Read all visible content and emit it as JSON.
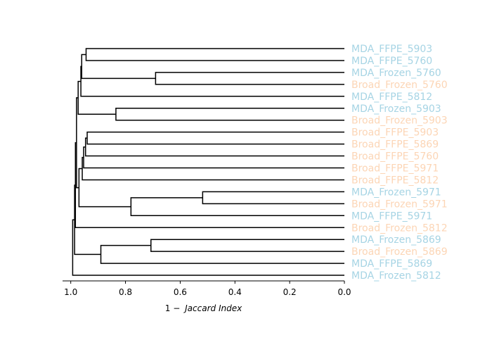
{
  "chart_data": {
    "type": "dendrogram",
    "orientation": "right-to-left",
    "xlabel": "1 − Jaccard Index",
    "xlabel_prefix": "1 −",
    "xlabel_italic": "Jaccard Index",
    "xlim": [
      1.03,
      0.0
    ],
    "xticks": [
      1.0,
      0.8,
      0.6,
      0.4,
      0.2,
      0.0
    ],
    "xtick_labels": [
      "1.0",
      "0.8",
      "0.6",
      "0.4",
      "0.2",
      "0.0"
    ],
    "group_colors": {
      "MDA": "#a6d4e4",
      "Broad": "#fcd5b5"
    },
    "line_color": "#000000",
    "leaves": [
      {
        "label": "MDA_FFPE_5903",
        "group": "MDA"
      },
      {
        "label": "MDA_FFPE_5760",
        "group": "MDA"
      },
      {
        "label": "MDA_Frozen_5760",
        "group": "MDA"
      },
      {
        "label": "Broad_Frozen_5760",
        "group": "Broad"
      },
      {
        "label": "MDA_FFPE_5812",
        "group": "MDA"
      },
      {
        "label": "MDA_Frozen_5903",
        "group": "MDA"
      },
      {
        "label": "Broad_Frozen_5903",
        "group": "Broad"
      },
      {
        "label": "Broad_FFPE_5903",
        "group": "Broad"
      },
      {
        "label": "Broad_FFPE_5869",
        "group": "Broad"
      },
      {
        "label": "Broad_FFPE_5760",
        "group": "Broad"
      },
      {
        "label": "Broad_FFPE_5971",
        "group": "Broad"
      },
      {
        "label": "Broad_FFPE_5812",
        "group": "Broad"
      },
      {
        "label": "MDA_Frozen_5971",
        "group": "MDA"
      },
      {
        "label": "Broad_Frozen_5971",
        "group": "Broad"
      },
      {
        "label": "MDA_FFPE_5971",
        "group": "MDA"
      },
      {
        "label": "Broad_Frozen_5812",
        "group": "Broad"
      },
      {
        "label": "MDA_Frozen_5869",
        "group": "MDA"
      },
      {
        "label": "Broad_Frozen_5869",
        "group": "Broad"
      },
      {
        "label": "MDA_FFPE_5869",
        "group": "MDA"
      },
      {
        "label": "MDA_Frozen_5812",
        "group": "MDA"
      }
    ],
    "merges": [
      {
        "id": "n1",
        "children": [
          "MDA_FFPE_5903",
          "MDA_FFPE_5760"
        ],
        "height": 0.944
      },
      {
        "id": "n2",
        "children": [
          "MDA_Frozen_5760",
          "Broad_Frozen_5760"
        ],
        "height": 0.69
      },
      {
        "id": "n3",
        "children": [
          "n1",
          "n2"
        ],
        "height": 0.96
      },
      {
        "id": "n4",
        "children": [
          "n3",
          "MDA_FFPE_5812"
        ],
        "height": 0.963
      },
      {
        "id": "n5",
        "children": [
          "MDA_Frozen_5903",
          "Broad_Frozen_5903"
        ],
        "height": 0.835
      },
      {
        "id": "n6",
        "children": [
          "n4",
          "n5"
        ],
        "height": 0.973
      },
      {
        "id": "n7",
        "children": [
          "Broad_FFPE_5903",
          "Broad_FFPE_5869"
        ],
        "height": 0.94
      },
      {
        "id": "n8",
        "children": [
          "n7",
          "Broad_FFPE_5760"
        ],
        "height": 0.946
      },
      {
        "id": "n9",
        "children": [
          "n8",
          "Broad_FFPE_5971"
        ],
        "height": 0.953
      },
      {
        "id": "n10",
        "children": [
          "n9",
          "Broad_FFPE_5812"
        ],
        "height": 0.958
      },
      {
        "id": "n11",
        "children": [
          "MDA_Frozen_5971",
          "Broad_Frozen_5971"
        ],
        "height": 0.518
      },
      {
        "id": "n12",
        "children": [
          "n11",
          "MDA_FFPE_5971"
        ],
        "height": 0.78
      },
      {
        "id": "n13",
        "children": [
          "n10",
          "n12"
        ],
        "height": 0.97
      },
      {
        "id": "n14",
        "children": [
          "n6",
          "n13"
        ],
        "height": 0.979
      },
      {
        "id": "n15",
        "children": [
          "n14",
          "Broad_Frozen_5812"
        ],
        "height": 0.983
      },
      {
        "id": "n16",
        "children": [
          "MDA_Frozen_5869",
          "Broad_Frozen_5869"
        ],
        "height": 0.707
      },
      {
        "id": "n17",
        "children": [
          "n16",
          "MDA_FFPE_5869"
        ],
        "height": 0.89
      },
      {
        "id": "n18",
        "children": [
          "n15",
          "n17"
        ],
        "height": 0.986
      },
      {
        "id": "n19",
        "children": [
          "n18",
          "MDA_Frozen_5812"
        ],
        "height": 0.993
      }
    ]
  }
}
